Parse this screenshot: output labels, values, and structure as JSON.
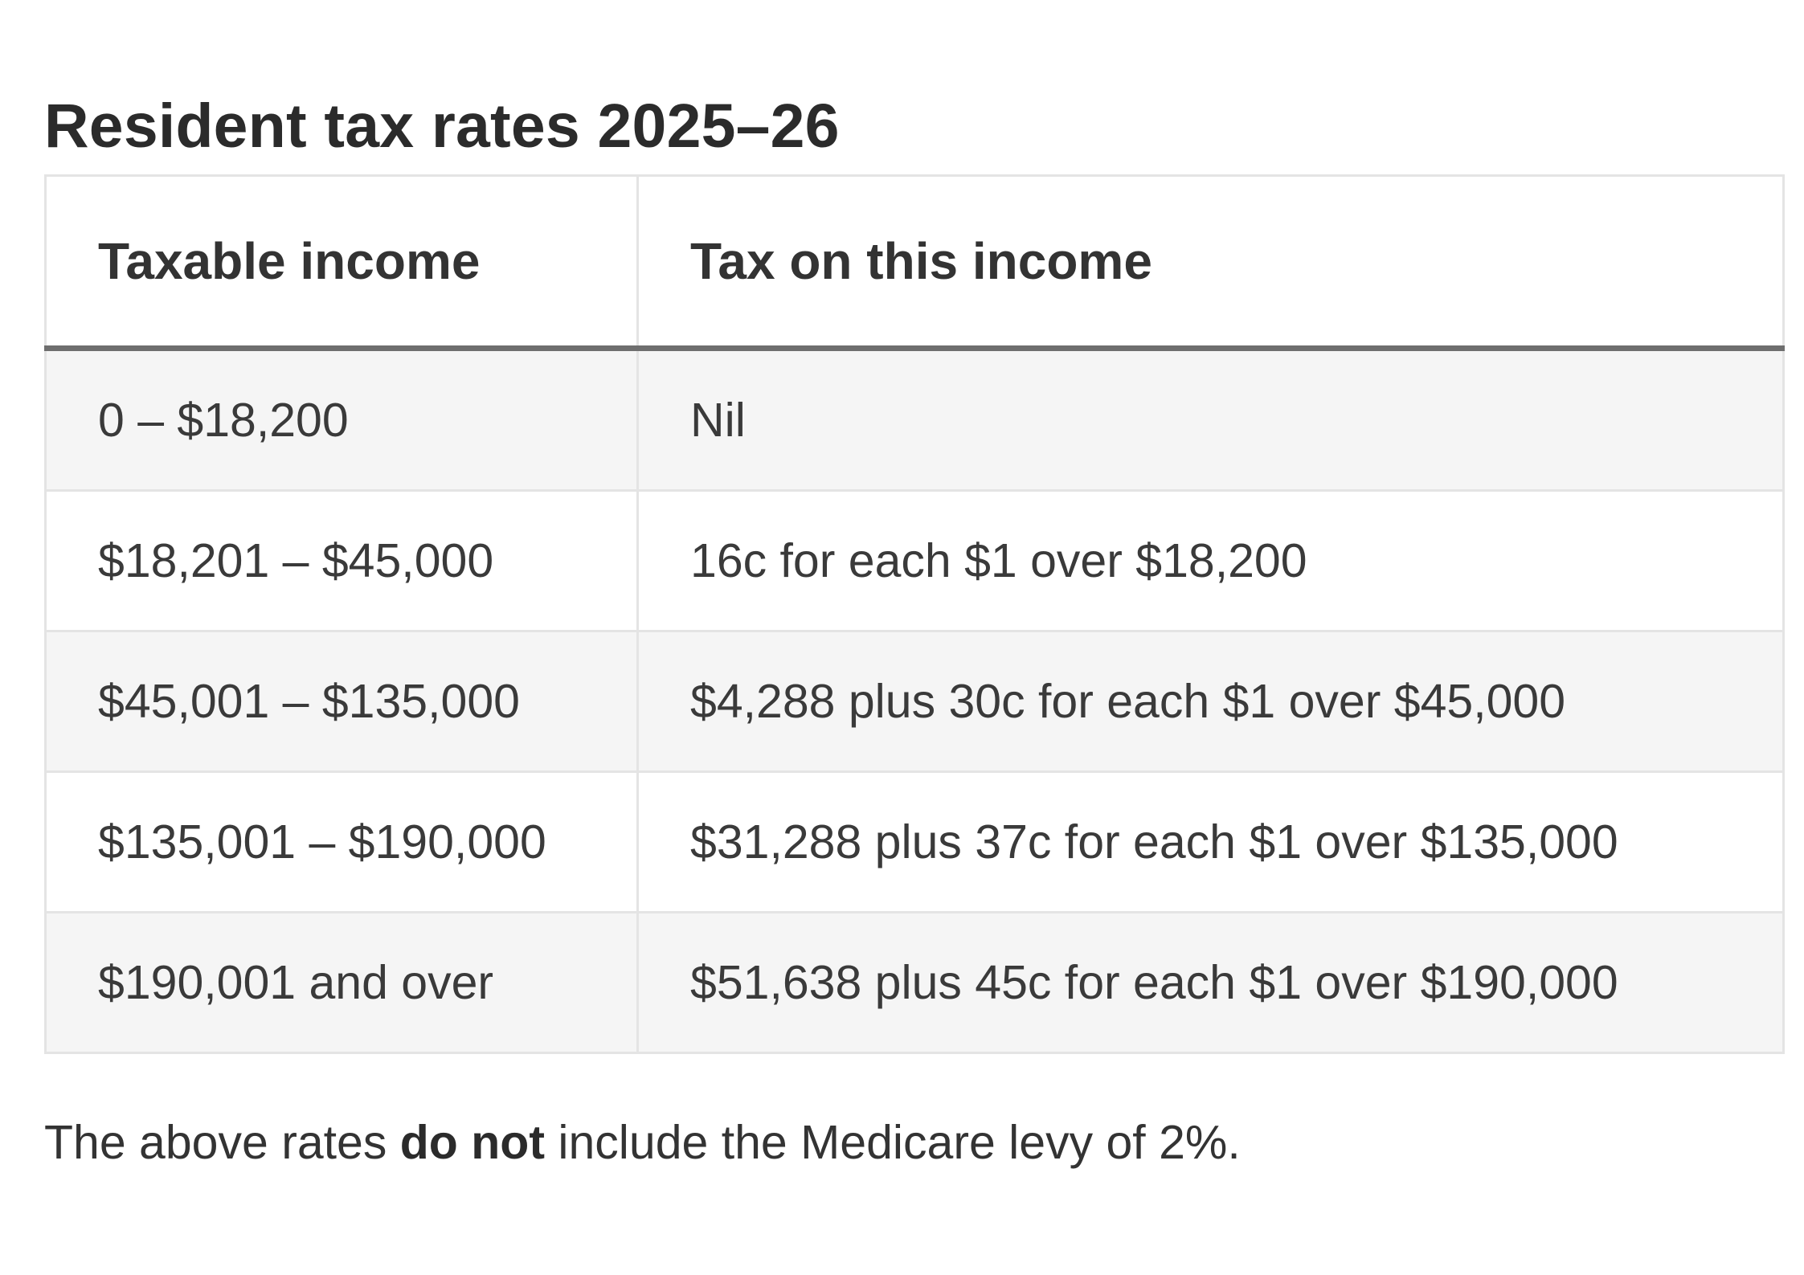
{
  "title": "Resident tax rates 2025–26",
  "table": {
    "headers": [
      "Taxable income",
      "Tax on this income"
    ],
    "rows": [
      [
        "0 – $18,200",
        "Nil"
      ],
      [
        "$18,201 – $45,000",
        "16c for each $1 over $18,200"
      ],
      [
        "$45,001 – $135,000",
        "$4,288 plus 30c for each $1 over $45,000"
      ],
      [
        "$135,001 – $190,000",
        "$31,288 plus 37c for each $1 over $135,000"
      ],
      [
        "$190,001 and over",
        "$51,638 plus 45c for each $1 over $190,000"
      ]
    ]
  },
  "note": {
    "prefix": "The above rates ",
    "emphasis": "do not",
    "suffix": " include the Medicare levy of 2%."
  },
  "colors": {
    "text": "#2b2b2b",
    "row_stripe": "#f5f5f5",
    "border": "#e4e4e4",
    "header_rule": "#6e6e6e"
  }
}
